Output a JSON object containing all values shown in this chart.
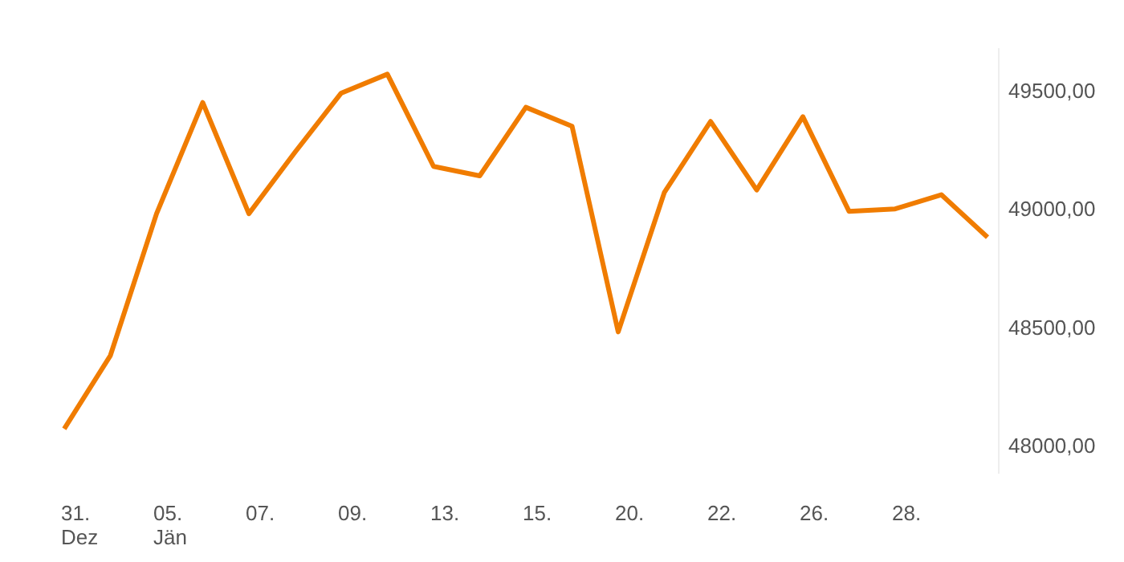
{
  "chart_data": {
    "type": "line",
    "categories": [
      "31. Dez",
      null,
      "05. Jän",
      null,
      "07.",
      null,
      "09.",
      null,
      "13.",
      null,
      "15.",
      null,
      "20.",
      null,
      "22.",
      null,
      "26.",
      null,
      "28.",
      null,
      null
    ],
    "series": [
      {
        "color": "#f07c00",
        "values": [
          48070,
          48380,
          48980,
          49450,
          48980,
          49240,
          49490,
          49570,
          49180,
          49140,
          49430,
          49350,
          48480,
          49070,
          49370,
          49080,
          49390,
          48990,
          49000,
          49060,
          48880
        ]
      }
    ],
    "ylim": [
      47880,
      49680
    ],
    "yticks": [
      {
        "value": 48000,
        "label": "48000,00"
      },
      {
        "value": 48500,
        "label": "48500,00"
      },
      {
        "value": 49000,
        "label": "49000,00"
      },
      {
        "value": 49500,
        "label": "49500,00"
      }
    ],
    "marker": "none",
    "line_style": "solid"
  }
}
